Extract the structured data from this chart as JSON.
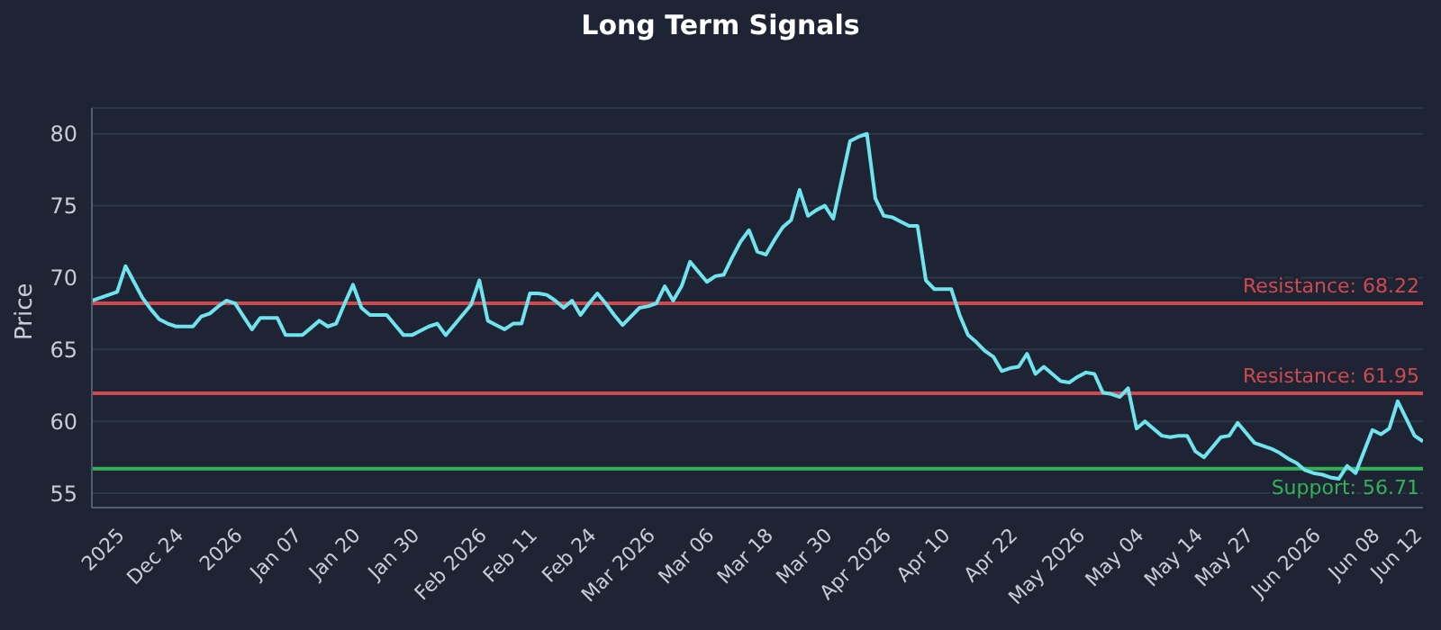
{
  "chart_data": {
    "type": "line",
    "title": "Long Term Signals",
    "ylabel": "Price",
    "categories": [
      null,
      null,
      null,
      null,
      "2025",
      null,
      null,
      null,
      null,
      null,
      null,
      "Dec 24",
      null,
      null,
      null,
      null,
      null,
      null,
      "2026",
      null,
      null,
      null,
      null,
      null,
      null,
      "Jan 07",
      null,
      null,
      null,
      null,
      null,
      null,
      "Jan 20",
      null,
      null,
      null,
      null,
      null,
      null,
      "Jan 30",
      null,
      null,
      null,
      null,
      null,
      null,
      null,
      "Feb 2026",
      null,
      null,
      null,
      null,
      null,
      "Feb 11",
      null,
      null,
      null,
      null,
      null,
      null,
      "Feb 24",
      null,
      null,
      null,
      null,
      null,
      null,
      "Mar 2026",
      null,
      null,
      null,
      null,
      null,
      null,
      "Mar 06",
      null,
      null,
      null,
      null,
      null,
      null,
      "Mar 18",
      null,
      null,
      null,
      null,
      null,
      null,
      "Mar 30",
      null,
      null,
      null,
      null,
      null,
      null,
      "Apr 2026",
      null,
      null,
      null,
      null,
      null,
      null,
      "Apr 10",
      null,
      null,
      null,
      null,
      null,
      null,
      null,
      "Apr 22",
      null,
      null,
      null,
      null,
      null,
      null,
      null,
      "May 2026",
      null,
      null,
      null,
      null,
      null,
      null,
      "May 04",
      null,
      null,
      null,
      null,
      null,
      null,
      "May 14",
      null,
      null,
      null,
      null,
      null,
      "May 27",
      null,
      null,
      null,
      null,
      null,
      null,
      null,
      "Jun 2026",
      null,
      null,
      null,
      null,
      null,
      null,
      "Jun 08",
      null,
      null,
      null,
      null,
      "Jun 12"
    ],
    "series": [
      {
        "color": "#6fe3ee",
        "values": [
          68.4,
          68.6,
          68.8,
          69.0,
          70.8,
          69.7,
          68.6,
          67.8,
          67.1,
          66.8,
          66.6,
          66.6,
          66.6,
          67.3,
          67.5,
          68.0,
          68.4,
          68.2,
          67.3,
          66.4,
          67.2,
          67.2,
          67.2,
          66.0,
          66.0,
          66.0,
          66.5,
          67.0,
          66.6,
          66.8,
          68.2,
          69.5,
          67.9,
          67.4,
          67.4,
          67.4,
          66.7,
          66.0,
          66.0,
          66.3,
          66.6,
          66.8,
          66.0,
          66.7,
          67.4,
          68.1,
          69.8,
          67.0,
          66.7,
          66.4,
          66.8,
          66.8,
          68.9,
          68.9,
          68.8,
          68.4,
          67.9,
          68.4,
          67.4,
          68.2,
          68.9,
          68.2,
          67.4,
          66.7,
          67.3,
          67.9,
          68.0,
          68.2,
          69.4,
          68.4,
          69.4,
          71.1,
          70.4,
          69.7,
          70.1,
          70.2,
          71.4,
          72.5,
          73.3,
          71.8,
          71.6,
          72.6,
          73.5,
          74.0,
          76.1,
          74.3,
          74.7,
          75.0,
          74.1,
          76.8,
          79.5,
          79.8,
          80.0,
          75.5,
          74.3,
          74.2,
          73.9,
          73.6,
          73.6,
          69.8,
          69.2,
          69.2,
          69.2,
          67.4,
          66.0,
          65.5,
          64.9,
          64.5,
          63.5,
          63.7,
          63.8,
          64.7,
          63.3,
          63.8,
          63.3,
          62.8,
          62.7,
          63.1,
          63.4,
          63.3,
          62.0,
          61.9,
          61.7,
          62.3,
          59.5,
          60.0,
          59.5,
          59.0,
          58.9,
          59.0,
          59.0,
          57.9,
          57.5,
          58.2,
          58.9,
          59.0,
          59.9,
          59.2,
          58.5,
          58.3,
          58.1,
          57.8,
          57.4,
          57.1,
          56.6,
          56.4,
          56.3,
          56.1,
          56.0,
          56.9,
          56.4,
          57.9,
          59.4,
          59.1,
          59.5,
          61.4,
          60.2,
          59.0,
          58.6
        ]
      }
    ],
    "ylim": [
      54,
      81.8
    ],
    "yticks": [
      55,
      60,
      65,
      70,
      75,
      80
    ],
    "ref_lines": [
      {
        "axis": "y",
        "value": 68.22,
        "label": "Resistance: 68.22",
        "color": "#cf4a50"
      },
      {
        "axis": "y",
        "value": 61.95,
        "label": "Resistance: 61.95",
        "color": "#cf4a50"
      },
      {
        "axis": "y",
        "value": 56.71,
        "label": "Support: 56.71",
        "color": "#33b257"
      }
    ],
    "grid": "y",
    "legend": false,
    "marker": "none",
    "line_style": "solid"
  }
}
